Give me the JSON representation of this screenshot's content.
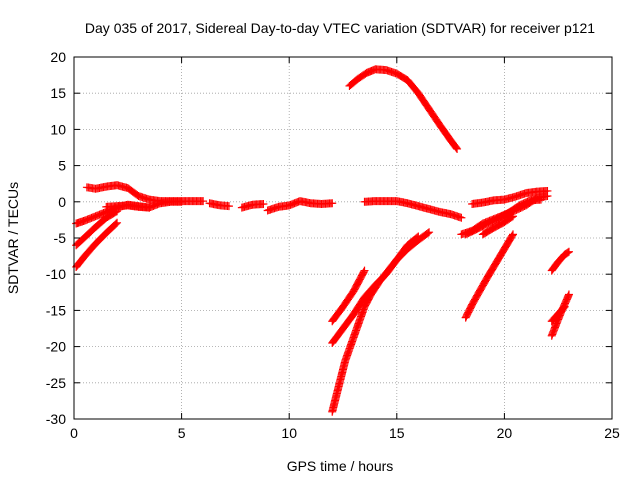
{
  "chart_data": {
    "type": "scatter",
    "title": "Day 035 of 2017, Sidereal Day-to-day VTEC variation (SDTVAR) for receiver p121",
    "xlabel": "GPS time / hours",
    "ylabel": "SDTVAR / TECUs",
    "xlim": [
      0,
      25
    ],
    "ylim": [
      -30,
      20
    ],
    "xticks": [
      0,
      5,
      10,
      15,
      20,
      25
    ],
    "yticks": [
      -30,
      -25,
      -20,
      -15,
      -10,
      -5,
      0,
      5,
      10,
      15,
      20
    ],
    "grid": true,
    "marker": "plus",
    "color": "#ff0000",
    "series": [
      {
        "points": [
          [
            0.6,
            2.0
          ],
          [
            1.0,
            1.8
          ],
          [
            1.5,
            2.1
          ],
          [
            2.0,
            2.3
          ],
          [
            2.5,
            1.9
          ],
          [
            3.0,
            0.8
          ],
          [
            3.5,
            0.3
          ],
          [
            4.0,
            0.1
          ],
          [
            4.5,
            0.1
          ],
          [
            5.0,
            0.1
          ],
          [
            5.5,
            0.1
          ],
          [
            6.0,
            0.1
          ]
        ]
      },
      {
        "points": [
          [
            0.1,
            -3.0
          ],
          [
            0.5,
            -2.6
          ],
          [
            1.0,
            -2.0
          ],
          [
            1.5,
            -1.4
          ],
          [
            2.0,
            -0.8
          ],
          [
            2.5,
            -0.4
          ],
          [
            3.0,
            -0.6
          ],
          [
            3.5,
            -0.8
          ]
        ]
      },
      {
        "points": [
          [
            1.5,
            -0.7
          ],
          [
            2.0,
            -0.6
          ],
          [
            2.5,
            -0.5
          ],
          [
            3.0,
            -0.7
          ],
          [
            3.5,
            -0.8
          ],
          [
            4.0,
            -0.2
          ],
          [
            4.5,
            0.0
          ],
          [
            5.0,
            0.0
          ]
        ]
      },
      {
        "points": [
          [
            0.1,
            -6.0
          ],
          [
            0.5,
            -4.9
          ],
          [
            1.0,
            -3.5
          ],
          [
            1.5,
            -2.2
          ],
          [
            2.0,
            -1.3
          ]
        ]
      },
      {
        "points": [
          [
            0.1,
            -9.0
          ],
          [
            0.5,
            -7.5
          ],
          [
            1.0,
            -5.8
          ],
          [
            1.5,
            -4.3
          ],
          [
            2.0,
            -2.9
          ]
        ]
      },
      {
        "points": [
          [
            6.3,
            -0.2
          ],
          [
            6.8,
            -0.5
          ],
          [
            7.2,
            -0.6
          ]
        ]
      },
      {
        "points": [
          [
            7.8,
            -0.8
          ],
          [
            8.3,
            -0.4
          ],
          [
            8.8,
            -0.3
          ]
        ]
      },
      {
        "points": [
          [
            9.0,
            -1.2
          ],
          [
            9.5,
            -0.7
          ],
          [
            10.0,
            -0.5
          ],
          [
            10.5,
            0.1
          ],
          [
            11.0,
            -0.2
          ],
          [
            11.5,
            -0.3
          ],
          [
            12.0,
            -0.2
          ]
        ]
      },
      {
        "points": [
          [
            12.8,
            16.0
          ],
          [
            13.2,
            17.0
          ],
          [
            13.6,
            17.8
          ],
          [
            14.0,
            18.3
          ],
          [
            14.5,
            18.2
          ],
          [
            15.0,
            17.7
          ],
          [
            15.5,
            16.8
          ],
          [
            16.0,
            15.0
          ],
          [
            16.5,
            12.8
          ],
          [
            17.0,
            10.6
          ],
          [
            17.5,
            8.5
          ],
          [
            17.8,
            7.3
          ]
        ]
      },
      {
        "points": [
          [
            13.5,
            0.0
          ],
          [
            14.0,
            0.1
          ],
          [
            14.5,
            0.1
          ],
          [
            15.0,
            0.1
          ],
          [
            15.5,
            -0.2
          ],
          [
            16.0,
            -0.6
          ],
          [
            16.5,
            -1.0
          ],
          [
            17.0,
            -1.4
          ],
          [
            17.5,
            -1.7
          ],
          [
            18.0,
            -2.2
          ]
        ]
      },
      {
        "points": [
          [
            12.0,
            -16.5
          ],
          [
            12.5,
            -14.5
          ],
          [
            13.0,
            -12.3
          ],
          [
            13.5,
            -9.5
          ]
        ]
      },
      {
        "points": [
          [
            12.0,
            -19.5
          ],
          [
            12.5,
            -17.5
          ],
          [
            13.0,
            -15.5
          ],
          [
            13.5,
            -13.2
          ],
          [
            14.0,
            -11.5
          ],
          [
            14.5,
            -10.0
          ],
          [
            15.0,
            -8.0
          ],
          [
            15.5,
            -6.5
          ],
          [
            16.0,
            -5.3
          ],
          [
            16.5,
            -4.2
          ]
        ]
      },
      {
        "points": [
          [
            12.0,
            -29.0
          ],
          [
            12.3,
            -25.5
          ],
          [
            12.6,
            -22.0
          ],
          [
            12.9,
            -19.5
          ],
          [
            13.2,
            -17.0
          ],
          [
            13.5,
            -14.5
          ],
          [
            13.8,
            -12.8
          ],
          [
            14.2,
            -11.0
          ],
          [
            14.6,
            -9.5
          ],
          [
            15.0,
            -8.0
          ],
          [
            15.5,
            -6.0
          ],
          [
            16.0,
            -4.8
          ]
        ]
      },
      {
        "points": [
          [
            18.5,
            -0.3
          ],
          [
            19.0,
            -0.1
          ],
          [
            19.5,
            0.2
          ],
          [
            20.0,
            0.3
          ],
          [
            20.5,
            0.7
          ],
          [
            21.0,
            1.2
          ],
          [
            21.5,
            1.4
          ],
          [
            22.0,
            1.5
          ]
        ]
      },
      {
        "points": [
          [
            18.0,
            -4.5
          ],
          [
            18.5,
            -4.0
          ],
          [
            19.0,
            -3.0
          ],
          [
            19.5,
            -2.4
          ],
          [
            20.0,
            -1.8
          ],
          [
            20.5,
            -1.2
          ],
          [
            21.0,
            -0.5
          ],
          [
            21.5,
            0.5
          ],
          [
            22.0,
            0.8
          ]
        ]
      },
      {
        "points": [
          [
            18.2,
            -4.5
          ],
          [
            18.7,
            -3.8
          ],
          [
            19.2,
            -3.0
          ],
          [
            19.7,
            -2.3
          ],
          [
            20.2,
            -1.5
          ],
          [
            20.7,
            -0.5
          ],
          [
            21.2,
            0.2
          ],
          [
            21.7,
            0.3
          ]
        ]
      },
      {
        "points": [
          [
            18.2,
            -16.0
          ],
          [
            18.5,
            -14.2
          ],
          [
            18.8,
            -12.6
          ],
          [
            19.2,
            -10.5
          ],
          [
            19.6,
            -8.5
          ],
          [
            20.0,
            -6.5
          ],
          [
            20.4,
            -4.5
          ]
        ]
      },
      {
        "points": [
          [
            19.0,
            -4.5
          ],
          [
            19.5,
            -3.6
          ],
          [
            20.0,
            -2.8
          ],
          [
            20.4,
            -2.0
          ]
        ]
      },
      {
        "points": [
          [
            22.2,
            -9.5
          ],
          [
            22.5,
            -8.3
          ],
          [
            22.8,
            -7.3
          ],
          [
            23.0,
            -6.9
          ]
        ]
      },
      {
        "points": [
          [
            22.2,
            -18.5
          ],
          [
            22.4,
            -17.0
          ],
          [
            22.6,
            -15.5
          ],
          [
            22.9,
            -13.5
          ],
          [
            23.0,
            -12.8
          ]
        ]
      },
      {
        "points": [
          [
            22.2,
            -16.5
          ],
          [
            22.5,
            -15.5
          ],
          [
            22.8,
            -14.5
          ]
        ]
      }
    ]
  }
}
